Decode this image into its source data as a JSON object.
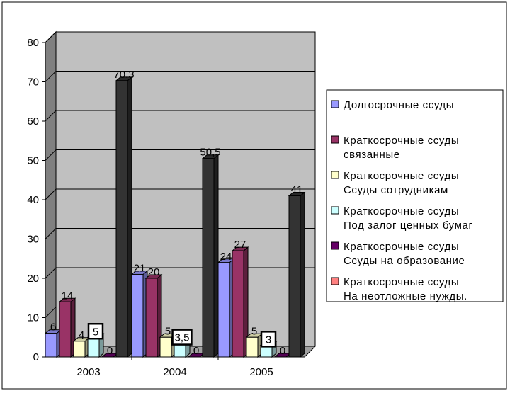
{
  "chart_data": {
    "type": "bar",
    "title": "",
    "xlabel": "",
    "ylabel": "",
    "ylim": [
      0,
      80
    ],
    "yticks": [
      0,
      10,
      20,
      30,
      40,
      50,
      60,
      70,
      80
    ],
    "grid": true,
    "legend_position": "right",
    "categories": [
      "2003",
      "2004",
      "2005"
    ],
    "series": [
      {
        "name": [
          "Долгосрочные  ссуды"
        ],
        "values": [
          6,
          21,
          24
        ],
        "labels": [
          "6",
          "21",
          "24"
        ],
        "color": "#9999ff"
      },
      {
        "name": [
          "Краткосрочные ссуды",
          "связанные"
        ],
        "values": [
          14,
          20,
          27
        ],
        "labels": [
          "14",
          "20",
          "27"
        ],
        "color": "#993366"
      },
      {
        "name": [
          "Краткосрочные ссуды",
          "Ссуды сотрудникам"
        ],
        "values": [
          4,
          5,
          5
        ],
        "labels": [
          "4",
          "5",
          "5"
        ],
        "color": "#ffffcc"
      },
      {
        "name": [
          "Краткосрочные ссуды",
          "Под залог ценных бумаг"
        ],
        "values": [
          5,
          3.5,
          3
        ],
        "labels": [
          "5",
          "3,5",
          "3"
        ],
        "color": "#ccffff"
      },
      {
        "name": [
          "Краткосрочные ссуды",
          "Ссуды на образование"
        ],
        "values": [
          0,
          0,
          0
        ],
        "labels": [
          "0",
          "0",
          "0"
        ],
        "color": "#660066"
      },
      {
        "name": [
          "Краткосрочные ссуды",
          "На неотложные нужды."
        ],
        "values": [
          70.3,
          50.5,
          41
        ],
        "labels": [
          "70,3",
          "50,5",
          "41"
        ],
        "color": "#333333"
      }
    ],
    "legend_colors": [
      "#9999ff",
      "#993366",
      "#ffffcc",
      "#ccffff",
      "#660066",
      "#ff8080"
    ]
  }
}
